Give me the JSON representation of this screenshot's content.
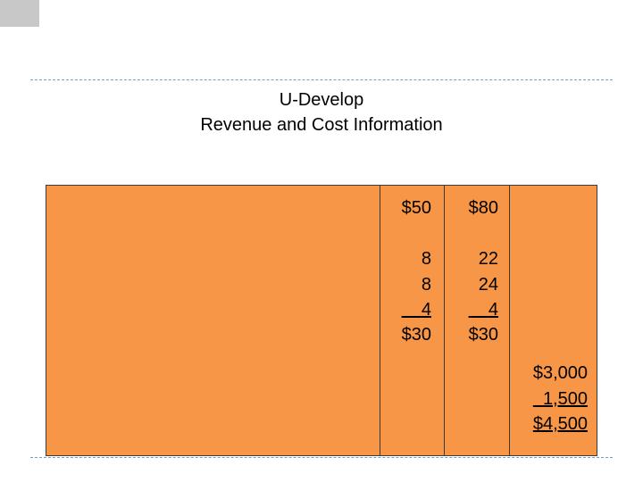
{
  "title": {
    "line1": "U-Develop",
    "line2": "Revenue and Cost Information"
  },
  "table": {
    "col_a": {
      "price": "$50",
      "cost1": "8",
      "cost2": "8",
      "cost3": "4",
      "total": "$30"
    },
    "col_b": {
      "price": "$80",
      "cost1": "22",
      "cost2": "24",
      "cost3": "4",
      "total": "$30"
    },
    "col_c": {
      "v1": "$3,000",
      "v2": "1,500",
      "total": "$4,500"
    }
  },
  "colors": {
    "table_fill": "#f79646",
    "border": "#3b3b3b",
    "dash": "#7a9cc4",
    "corner": "#c8c8c8"
  }
}
